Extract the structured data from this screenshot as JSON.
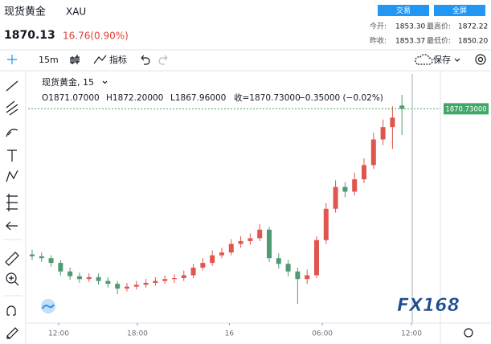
{
  "header": {
    "symbol_name": "现货黄金",
    "symbol": "XAU",
    "price": "1870.13",
    "change": "16.76(0.90%)",
    "buttons": [
      "交易",
      "全屏"
    ],
    "stats": [
      {
        "label": "今开:",
        "value": "1853.30"
      },
      {
        "label": "最高价:",
        "value": "1872.22"
      },
      {
        "label": "昨收:",
        "value": "1853.37"
      },
      {
        "label": "最低价:",
        "value": "1850.20"
      }
    ]
  },
  "toolbar": {
    "interval": "15m",
    "indicators": "指标",
    "save": "保存"
  },
  "logo": "FX168",
  "chart_data": {
    "type": "candlestick",
    "title": "现货黄金, 15",
    "legend": [
      "O1871.07000",
      "H1872.20000",
      "L1867.96000",
      "收=1870.73000",
      "−0.35000 (−0.02%)"
    ],
    "up_color": "#e0564f",
    "down_color": "#4f9a72",
    "open": [
      1855.4,
      1855.2,
      1855.0,
      1854.5,
      1853.6,
      1853.1,
      1852.8,
      1853.0,
      1852.6,
      1852.3,
      1851.8,
      1852.0,
      1852.2,
      1852.4,
      1852.6,
      1852.8,
      1852.9,
      1853.2,
      1854.0,
      1854.5,
      1855.3,
      1855.6,
      1856.5,
      1856.8,
      1857.1,
      1858.0,
      1855.0,
      1854.4,
      1853.6,
      1852.8,
      1853.2,
      1856.9,
      1860.2,
      1862.5,
      1862.0,
      1863.3,
      1864.8,
      1867.5,
      1868.8,
      1871.07
    ],
    "high": [
      1855.9,
      1855.6,
      1855.3,
      1854.8,
      1854.0,
      1853.5,
      1853.4,
      1853.4,
      1853.0,
      1852.6,
      1852.4,
      1852.6,
      1852.8,
      1853.0,
      1853.2,
      1853.3,
      1853.7,
      1854.4,
      1855.0,
      1855.8,
      1856.1,
      1857.0,
      1857.3,
      1857.6,
      1858.6,
      1858.3,
      1855.5,
      1854.8,
      1854.0,
      1853.8,
      1857.3,
      1860.8,
      1863.2,
      1863.0,
      1864.0,
      1865.5,
      1868.2,
      1869.6,
      1871.0,
      1872.2
    ],
    "low": [
      1854.8,
      1854.6,
      1854.1,
      1853.2,
      1852.7,
      1852.4,
      1852.5,
      1852.2,
      1851.9,
      1851.2,
      1851.5,
      1851.7,
      1851.9,
      1852.1,
      1852.3,
      1852.4,
      1852.6,
      1852.9,
      1853.7,
      1854.2,
      1855.0,
      1855.3,
      1856.1,
      1856.4,
      1856.8,
      1854.6,
      1853.9,
      1853.1,
      1850.2,
      1852.3,
      1852.9,
      1856.5,
      1859.8,
      1861.4,
      1861.6,
      1862.9,
      1864.4,
      1866.9,
      1866.5,
      1867.96
    ],
    "close": [
      1855.2,
      1855.0,
      1854.5,
      1853.6,
      1853.1,
      1852.8,
      1853.0,
      1852.6,
      1852.3,
      1851.8,
      1852.0,
      1852.2,
      1852.4,
      1852.6,
      1852.8,
      1852.9,
      1853.2,
      1854.0,
      1854.5,
      1855.3,
      1855.6,
      1856.5,
      1856.8,
      1857.1,
      1858.0,
      1855.0,
      1854.4,
      1853.6,
      1852.8,
      1853.2,
      1856.9,
      1860.2,
      1862.5,
      1862.0,
      1863.3,
      1864.8,
      1867.5,
      1868.8,
      1869.8,
      1870.73
    ],
    "last_price": 1870.73,
    "last_price_label": "1870.73000",
    "last_price_color": "#3fa867",
    "xlim": [
      -0.42,
      43.05
    ],
    "ylim": [
      1848.5,
      1874.4
    ],
    "xticks": [
      {
        "value": 2.8,
        "label": "12:00"
      },
      {
        "value": 11.1,
        "label": "18:00"
      },
      {
        "value": 20.8,
        "label": "16"
      },
      {
        "value": 30.6,
        "label": "06:00"
      },
      {
        "value": 40.0,
        "label": "12:00"
      }
    ]
  }
}
